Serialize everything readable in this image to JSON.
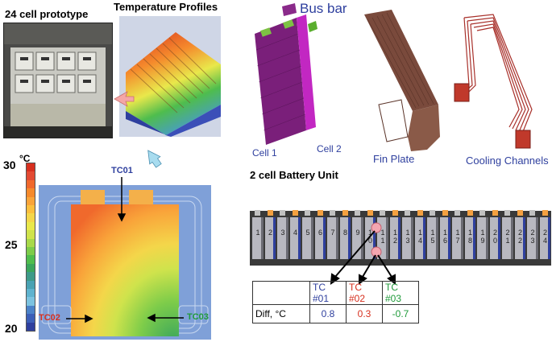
{
  "labels": {
    "prototype": "24 cell prototype",
    "temp_profiles": "Temperature Profiles",
    "bus_bar": "Bus bar",
    "cell1": "Cell 1",
    "cell2": "Cell 2",
    "fin_plate": "Fin Plate",
    "cooling_channels": "Cooling Channels",
    "unit_title": "2 cell Battery Unit"
  },
  "colorbar": {
    "max_label": "30",
    "unit": "°C",
    "mid_label": "25",
    "min_label": "20",
    "colors": [
      "#d7301f",
      "#e34a33",
      "#f0692c",
      "#f58a2c",
      "#f9a43a",
      "#fbbf3e",
      "#f4d64a",
      "#e9e84b",
      "#cfe34c",
      "#a8d94a",
      "#7dcc4a",
      "#4fbd4d",
      "#3aa65c",
      "#3d9a89",
      "#49a2b3",
      "#5fb3cf",
      "#7cc3e0",
      "#4b82c8",
      "#3b5fb8",
      "#2e3f9e"
    ]
  },
  "thermocouples": {
    "tc01": "TC01",
    "tc02": "TC02",
    "tc03": "TC03"
  },
  "cells": [
    "1",
    "2",
    "3",
    "4",
    "5",
    "6",
    "7",
    "8",
    "9",
    "1\n0",
    "1\n1",
    "1\n2",
    "1\n3",
    "1\n4",
    "1\n5",
    "1\n6",
    "1\n7",
    "1\n8",
    "1\n9",
    "2\n0",
    "2\n1",
    "2\n2",
    "2\n3",
    "2\n4"
  ],
  "table": {
    "headers": [
      "",
      "TC #01",
      "TC #02",
      "TC #03"
    ],
    "row_label": "Diff, °C",
    "values": [
      "0.8",
      "0.3",
      "-0.7"
    ],
    "colors": [
      "#2e3f9e",
      "#d7301f",
      "#1f9a3a"
    ]
  }
}
